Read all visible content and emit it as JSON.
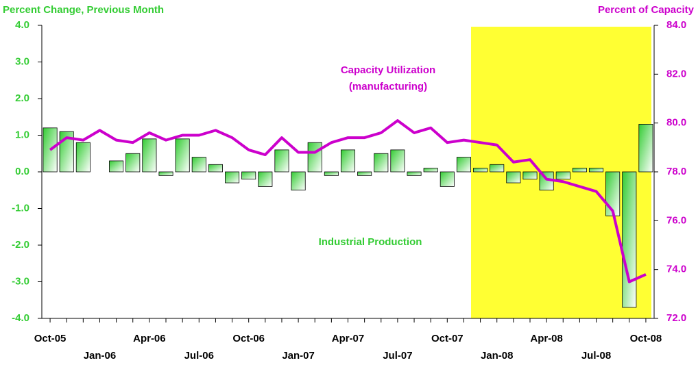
{
  "chart_data": {
    "type": "bar",
    "y_label": "Percent Change, Previous Month",
    "y2_label": "Percent of Capacity",
    "categories": [
      "Oct-05",
      null,
      null,
      "Jan-06",
      null,
      null,
      "Apr-06",
      null,
      null,
      "Jul-06",
      null,
      null,
      "Oct-06",
      null,
      null,
      "Jan-07",
      null,
      null,
      "Apr-07",
      null,
      null,
      "Jul-07",
      null,
      null,
      "Oct-07",
      null,
      null,
      "Jan-08",
      null,
      null,
      "Apr-08",
      null,
      null,
      "Jul-08",
      null,
      null,
      "Oct-08"
    ],
    "series": [
      {
        "name": "Industrial Production",
        "type": "bar",
        "color": "#33cc33",
        "values": [
          1.2,
          1.1,
          0.8,
          0.0,
          0.3,
          0.5,
          0.9,
          -0.1,
          0.9,
          0.4,
          0.2,
          -0.3,
          -0.2,
          -0.4,
          0.6,
          -0.5,
          0.8,
          -0.1,
          0.6,
          -0.1,
          0.5,
          0.6,
          -0.1,
          0.1,
          -0.4,
          0.4,
          0.1,
          0.2,
          -0.3,
          -0.2,
          -0.5,
          -0.2,
          0.1,
          0.1,
          -1.2,
          -3.7,
          1.3
        ]
      },
      {
        "name": "Capacity Utilization (manufacturing)",
        "type": "line",
        "axis": "y2",
        "color": "#cc00cc",
        "values": [
          78.9,
          79.4,
          79.3,
          79.7,
          79.3,
          79.2,
          79.6,
          79.3,
          79.5,
          79.5,
          79.7,
          79.4,
          78.9,
          78.7,
          79.4,
          78.8,
          78.8,
          79.2,
          79.4,
          79.4,
          79.6,
          80.1,
          79.6,
          79.8,
          79.2,
          79.3,
          79.2,
          79.1,
          78.4,
          78.5,
          77.7,
          77.6,
          77.4,
          77.2,
          76.4,
          73.5,
          73.8
        ]
      }
    ],
    "ylim": [
      -4,
      4
    ],
    "yticks": [
      {
        "value": -4,
        "label": "-4.0"
      },
      {
        "value": -3,
        "label": "-3.0"
      },
      {
        "value": -2,
        "label": "-2.0"
      },
      {
        "value": -1,
        "label": "-1.0"
      },
      {
        "value": 0,
        "label": "0.0"
      },
      {
        "value": 1,
        "label": "1.0"
      },
      {
        "value": 2,
        "label": "2.0"
      },
      {
        "value": 3,
        "label": "3.0"
      },
      {
        "value": 4,
        "label": "4.0"
      }
    ],
    "y2lim": [
      72,
      84
    ],
    "y2ticks": [
      {
        "value": 72,
        "label": "72.0"
      },
      {
        "value": 74,
        "label": "74.0"
      },
      {
        "value": 76,
        "label": "76.0"
      },
      {
        "value": 78,
        "label": "78.0"
      },
      {
        "value": 80,
        "label": "80.0"
      },
      {
        "value": 82,
        "label": "82.0"
      },
      {
        "value": 84,
        "label": "84.0"
      }
    ]
  }
}
